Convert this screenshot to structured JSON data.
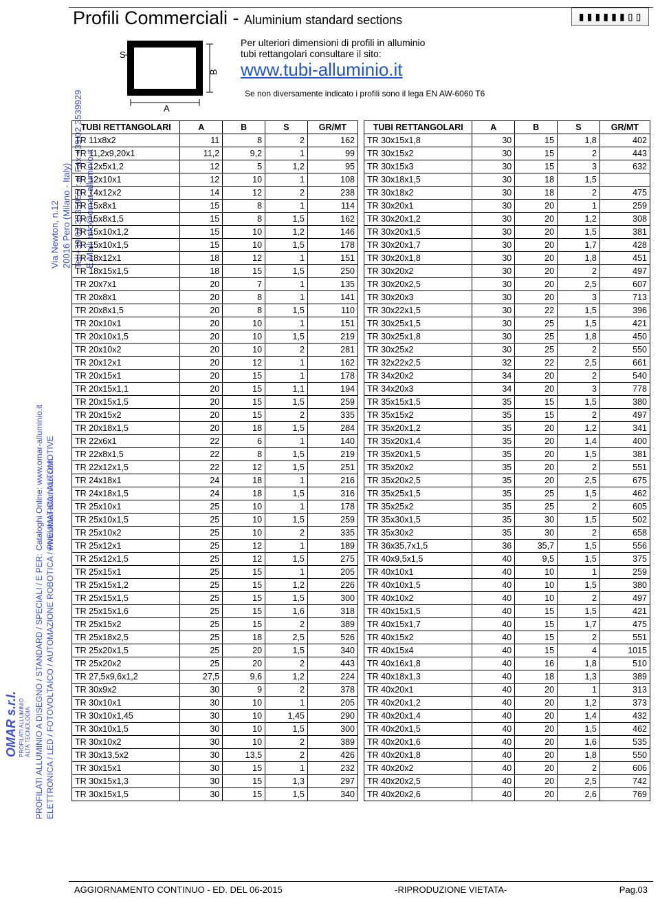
{
  "side": {
    "address": "Via Newton, n.12\n20016 Pero (Milano - Italy)\nTel.+39 02 3535955 r.a. Fax.+39 02 3539929\nE.Mail: info@omar-alluminio.it",
    "catalog": "Cataloghi Online: www.omar-alluminio.it\nwww.omar-alluminio.com",
    "profilati": "PROFILATI ALLUMINIO A DISEGNO / STANDARD / SPECIALI / E PER:\nELETTRONICA / LED / FOTOVOLTAICO / AUTOMAZIONE ROBOTICA / PNEUMATICA / AUTOMOTIVE",
    "logo": "OMAR s.r.l.",
    "logo_sub": "PROFILATI ALLUMINIO\nALTA TECNOLOGIA"
  },
  "header": {
    "title_main": "Profili Commerciali -",
    "title_sub": "Aluminium standard sections",
    "note_line1": "Per ulteriori dimensioni di profili in alluminio",
    "note_line2": "tubi rettangolari consultare il sito:",
    "link": "www.tubi-alluminio.it",
    "alloy": "Se non diversamente indicato i profili sono il lega EN AW-6060 T6"
  },
  "diagram": {
    "A": "A",
    "B": "B",
    "S": "S"
  },
  "columns": [
    "TUBI RETTANGOLARI",
    "A",
    "B",
    "S",
    "GR/MT"
  ],
  "left_rows": [
    [
      "TR 11x8x2",
      "11",
      "8",
      "2",
      "162"
    ],
    [
      "TR 11,2x9,20x1",
      "11,2",
      "9,2",
      "1",
      "99"
    ],
    [
      "TR 12x5x1,2",
      "12",
      "5",
      "1,2",
      "95"
    ],
    [
      "TR 12x10x1",
      "12",
      "10",
      "1",
      "108"
    ],
    [
      "TR 14x12x2",
      "14",
      "12",
      "2",
      "238"
    ],
    [
      "TR 15x8x1",
      "15",
      "8",
      "1",
      "114"
    ],
    [
      "TR 15x8x1,5",
      "15",
      "8",
      "1,5",
      "162"
    ],
    [
      "TR 15x10x1,2",
      "15",
      "10",
      "1,2",
      "146"
    ],
    [
      "TR 15x10x1,5",
      "15",
      "10",
      "1,5",
      "178"
    ],
    [
      "TR 18x12x1",
      "18",
      "12",
      "1",
      "151"
    ],
    [
      "TR 18x15x1,5",
      "18",
      "15",
      "1,5",
      "250"
    ],
    [
      "TR 20x7x1",
      "20",
      "7",
      "1",
      "135"
    ],
    [
      "TR 20x8x1",
      "20",
      "8",
      "1",
      "141"
    ],
    [
      "TR 20x8x1,5",
      "20",
      "8",
      "1,5",
      "110"
    ],
    [
      "TR 20x10x1",
      "20",
      "10",
      "1",
      "151"
    ],
    [
      "TR 20x10x1,5",
      "20",
      "10",
      "1,5",
      "219"
    ],
    [
      "TR 20x10x2",
      "20",
      "10",
      "2",
      "281"
    ],
    [
      "TR 20x12x1",
      "20",
      "12",
      "1",
      "162"
    ],
    [
      "TR 20x15x1",
      "20",
      "15",
      "1",
      "178"
    ],
    [
      "TR 20x15x1,1",
      "20",
      "15",
      "1,1",
      "194"
    ],
    [
      "TR 20x15x1,5",
      "20",
      "15",
      "1,5",
      "259"
    ],
    [
      "TR 20x15x2",
      "20",
      "15",
      "2",
      "335"
    ],
    [
      "TR 20x18x1,5",
      "20",
      "18",
      "1,5",
      "284"
    ],
    [
      "TR 22x6x1",
      "22",
      "6",
      "1",
      "140"
    ],
    [
      "TR 22x8x1,5",
      "22",
      "8",
      "1,5",
      "219"
    ],
    [
      "TR 22x12x1,5",
      "22",
      "12",
      "1,5",
      "251"
    ],
    [
      "TR 24x18x1",
      "24",
      "18",
      "1",
      "216"
    ],
    [
      "TR 24x18x1,5",
      "24",
      "18",
      "1,5",
      "316"
    ],
    [
      "TR 25x10x1",
      "25",
      "10",
      "1",
      "178"
    ],
    [
      "TR 25x10x1,5",
      "25",
      "10",
      "1,5",
      "259"
    ],
    [
      "TR 25x10x2",
      "25",
      "10",
      "2",
      "335"
    ],
    [
      "TR 25x12x1",
      "25",
      "12",
      "1",
      "189"
    ],
    [
      "TR 25x12x1,5",
      "25",
      "12",
      "1,5",
      "275"
    ],
    [
      "TR 25x15x1",
      "25",
      "15",
      "1",
      "205"
    ],
    [
      "TR 25x15x1,2",
      "25",
      "15",
      "1,2",
      "226"
    ],
    [
      "TR 25x15x1,5",
      "25",
      "15",
      "1,5",
      "300"
    ],
    [
      "TR 25x15x1,6",
      "25",
      "15",
      "1,6",
      "318"
    ],
    [
      "TR 25x15x2",
      "25",
      "15",
      "2",
      "389"
    ],
    [
      "TR 25x18x2,5",
      "25",
      "18",
      "2,5",
      "526"
    ],
    [
      "TR 25x20x1,5",
      "25",
      "20",
      "1,5",
      "340"
    ],
    [
      "TR 25x20x2",
      "25",
      "20",
      "2",
      "443"
    ],
    [
      "TR 27,5x9,6x1,2",
      "27,5",
      "9,6",
      "1,2",
      "224"
    ],
    [
      "TR 30x9x2",
      "30",
      "9",
      "2",
      "378"
    ],
    [
      "TR 30x10x1",
      "30",
      "10",
      "1",
      "205"
    ],
    [
      "TR 30x10x1,45",
      "30",
      "10",
      "1,45",
      "290"
    ],
    [
      "TR 30x10x1,5",
      "30",
      "10",
      "1,5",
      "300"
    ],
    [
      "TR 30x10x2",
      "30",
      "10",
      "2",
      "389"
    ],
    [
      "TR 30x13,5x2",
      "30",
      "13,5",
      "2",
      "426"
    ],
    [
      "TR 30x15x1",
      "30",
      "15",
      "1",
      "232"
    ],
    [
      "TR 30x15x1,3",
      "30",
      "15",
      "1,3",
      "297"
    ],
    [
      "TR 30x15x1,5",
      "30",
      "15",
      "1,5",
      "340"
    ]
  ],
  "right_rows": [
    [
      "TR 30x15x1,8",
      "30",
      "15",
      "1,8",
      "402"
    ],
    [
      "TR 30x15x2",
      "30",
      "15",
      "2",
      "443"
    ],
    [
      "TR 30x15x3",
      "30",
      "15",
      "3",
      "632"
    ],
    [
      "TR 30x18x1,5",
      "30",
      "18",
      "1,5",
      ""
    ],
    [
      "TR 30x18x2",
      "30",
      "18",
      "2",
      "475"
    ],
    [
      "TR 30x20x1",
      "30",
      "20",
      "1",
      "259"
    ],
    [
      "TR 30x20x1,2",
      "30",
      "20",
      "1,2",
      "308"
    ],
    [
      "TR 30x20x1,5",
      "30",
      "20",
      "1,5",
      "381"
    ],
    [
      "TR 30x20x1,7",
      "30",
      "20",
      "1,7",
      "428"
    ],
    [
      "TR 30x20x1,8",
      "30",
      "20",
      "1,8",
      "451"
    ],
    [
      "TR 30x20x2",
      "30",
      "20",
      "2",
      "497"
    ],
    [
      "TR 30x20x2,5",
      "30",
      "20",
      "2,5",
      "607"
    ],
    [
      "TR 30x20x3",
      "30",
      "20",
      "3",
      "713"
    ],
    [
      "TR 30x22x1,5",
      "30",
      "22",
      "1,5",
      "396"
    ],
    [
      "TR 30x25x1,5",
      "30",
      "25",
      "1,5",
      "421"
    ],
    [
      "TR 30x25x1,8",
      "30",
      "25",
      "1,8",
      "450"
    ],
    [
      "TR 30x25x2",
      "30",
      "25",
      "2",
      "550"
    ],
    [
      "TR 32x22x2,5",
      "32",
      "22",
      "2,5",
      "661"
    ],
    [
      "TR 34x20x2",
      "34",
      "20",
      "2",
      "540"
    ],
    [
      "TR 34x20x3",
      "34",
      "20",
      "3",
      "778"
    ],
    [
      "TR 35x15x1,5",
      "35",
      "15",
      "1,5",
      "380"
    ],
    [
      "TR 35x15x2",
      "35",
      "15",
      "2",
      "497"
    ],
    [
      "TR 35x20x1,2",
      "35",
      "20",
      "1,2",
      "341"
    ],
    [
      "TR 35x20x1,4",
      "35",
      "20",
      "1,4",
      "400"
    ],
    [
      "TR 35x20x1,5",
      "35",
      "20",
      "1,5",
      "381"
    ],
    [
      "TR 35x20x2",
      "35",
      "20",
      "2",
      "551"
    ],
    [
      "TR 35x20x2,5",
      "35",
      "20",
      "2,5",
      "675"
    ],
    [
      "TR 35x25x1,5",
      "35",
      "25",
      "1,5",
      "462"
    ],
    [
      "TR 35x25x2",
      "35",
      "25",
      "2",
      "605"
    ],
    [
      "TR 35x30x1,5",
      "35",
      "30",
      "1,5",
      "502"
    ],
    [
      "TR 35x30x2",
      "35",
      "30",
      "2",
      "658"
    ],
    [
      "TR 36x35,7x1,5",
      "36",
      "35,7",
      "1,5",
      "556"
    ],
    [
      "TR 40x9,5x1,5",
      "40",
      "9,5",
      "1,5",
      "375"
    ],
    [
      "TR 40x10x1",
      "40",
      "10",
      "1",
      "259"
    ],
    [
      "TR 40x10x1,5",
      "40",
      "10",
      "1,5",
      "380"
    ],
    [
      "TR 40x10x2",
      "40",
      "10",
      "2",
      "497"
    ],
    [
      "TR 40x15x1,5",
      "40",
      "15",
      "1,5",
      "421"
    ],
    [
      "TR 40x15x1,7",
      "40",
      "15",
      "1,7",
      "475"
    ],
    [
      "TR 40x15x2",
      "40",
      "15",
      "2",
      "551"
    ],
    [
      "TR 40x15x4",
      "40",
      "15",
      "4",
      "1015"
    ],
    [
      "TR 40x16x1,8",
      "40",
      "16",
      "1,8",
      "510"
    ],
    [
      "TR 40x18x1,3",
      "40",
      "18",
      "1,3",
      "389"
    ],
    [
      "TR 40x20x1",
      "40",
      "20",
      "1",
      "313"
    ],
    [
      "TR 40x20x1,2",
      "40",
      "20",
      "1,2",
      "373"
    ],
    [
      "TR 40x20x1,4",
      "40",
      "20",
      "1,4",
      "432"
    ],
    [
      "TR 40x20x1,5",
      "40",
      "20",
      "1,5",
      "462"
    ],
    [
      "TR 40x20x1,6",
      "40",
      "20",
      "1,6",
      "535"
    ],
    [
      "TR 40x20x1,8",
      "40",
      "20",
      "1,8",
      "550"
    ],
    [
      "TR 40x20x2",
      "40",
      "20",
      "2",
      "606"
    ],
    [
      "TR 40x20x2,5",
      "40",
      "20",
      "2,5",
      "742"
    ],
    [
      "TR 40x20x2,6",
      "40",
      "20",
      "2,6",
      "769"
    ]
  ],
  "footer": {
    "left": "AGGIORNAMENTO CONTINUO - ED. DEL 06-2015",
    "center": "-RIPRODUZIONE VIETATA-",
    "right": "Pag.03"
  }
}
